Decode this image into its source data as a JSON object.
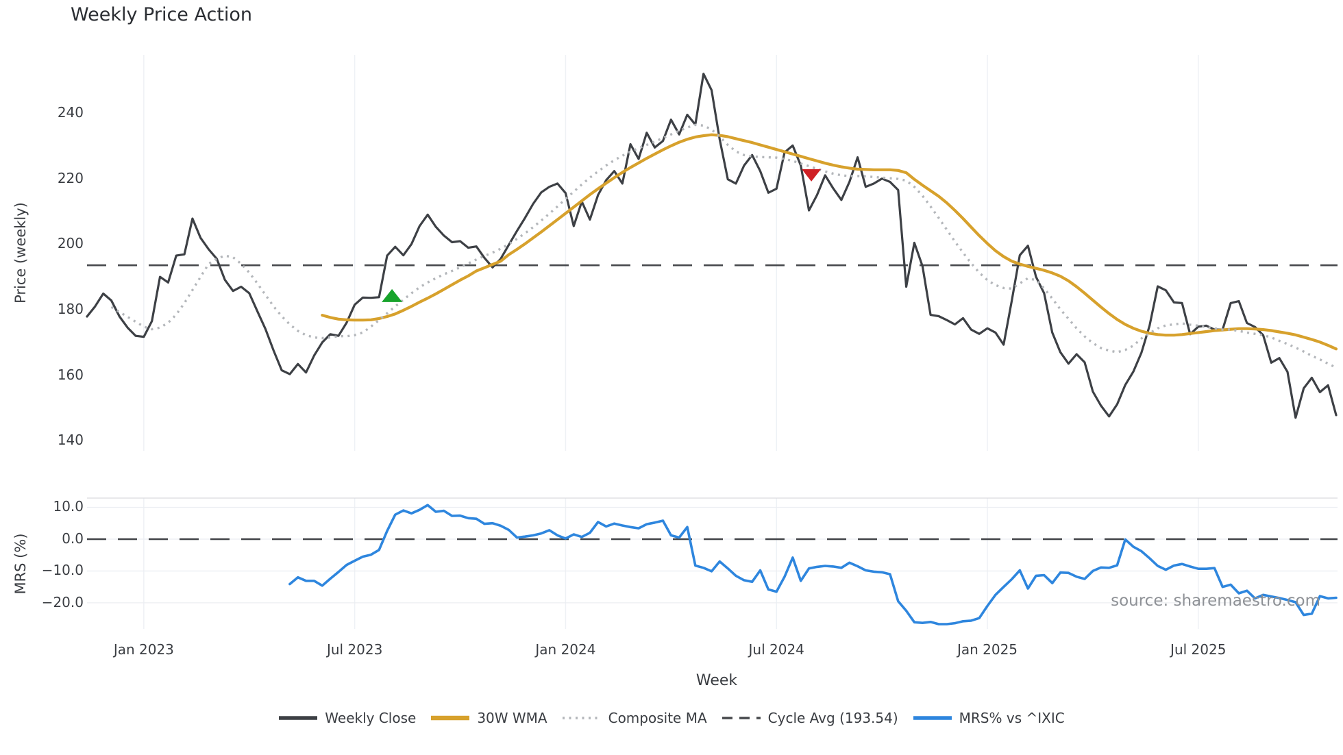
{
  "chart_data": {
    "type": "line",
    "title": "Weekly Price Action",
    "xlabel": "Week",
    "source_note": "source: sharemaestro.com",
    "colors": {
      "weekly_close": "#3d4045",
      "wma30": "#d7a12c",
      "composite": "#b4b7bb",
      "mrs": "#2e86de",
      "reference": "#46484c",
      "grid": "#eef1f5",
      "grid_h": "#eceef2",
      "spine": "#d9dbdf",
      "marker_buy": "#17a32b",
      "marker_sell": "#cf2025"
    },
    "panels": [
      {
        "id": "price",
        "ylabel": "Price (weekly)",
        "ylim": [
          136.9,
          257.8
        ],
        "yticks": [
          {
            "label": "240",
            "value": 240
          },
          {
            "label": "220",
            "value": 220
          },
          {
            "label": "200",
            "value": 200
          },
          {
            "label": "180",
            "value": 180
          },
          {
            "label": "160",
            "value": 160
          },
          {
            "label": "140",
            "value": 140
          }
        ],
        "h_grid": false
      },
      {
        "id": "mrs",
        "ylabel": "MRS (%)",
        "ylim": [
          -28.2,
          12.9
        ],
        "yticks": [
          {
            "label": "10.0",
            "value": 10
          },
          {
            "label": "0.0",
            "value": 0
          },
          {
            "label": "−10.0",
            "value": -10
          },
          {
            "label": "−20.0",
            "value": -20
          }
        ],
        "h_grid": true
      }
    ],
    "x_axis": {
      "weeks_total": 154,
      "ticks": [
        {
          "label": "Jan 2023",
          "week": 7
        },
        {
          "label": "Jul 2023",
          "week": 33
        },
        {
          "label": "Jan 2024",
          "week": 59
        },
        {
          "label": "Jul 2024",
          "week": 85
        },
        {
          "label": "Jan 2025",
          "week": 111
        },
        {
          "label": "Jul 2025",
          "week": 137
        }
      ]
    },
    "reference_lines": [
      {
        "name": "Cycle Avg (193.54)",
        "panel": "price",
        "value": 193.54,
        "style": "dashed"
      },
      {
        "name": "Zero",
        "panel": "mrs",
        "value": 0,
        "style": "dashed"
      }
    ],
    "markers": [
      {
        "shape": "triangle-up",
        "panel": "price",
        "week": 37.6,
        "price": 184.3,
        "color_key": "marker_buy",
        "w": 30,
        "h": 19
      },
      {
        "shape": "triangle-down",
        "panel": "price",
        "week": 89.3,
        "price": 221.0,
        "color_key": "marker_sell",
        "w": 28,
        "h": 18
      }
    ],
    "legend": {
      "position": "bottom-center",
      "entries": [
        {
          "label": "Weekly Close",
          "swatch": "solid-dark"
        },
        {
          "label": "30W WMA",
          "swatch": "solid-gold"
        },
        {
          "label": "Composite MA",
          "swatch": "dotted-gray"
        },
        {
          "label": "Cycle Avg (193.54)",
          "swatch": "dashed-dark"
        },
        {
          "label": "MRS% vs ^IXIC",
          "swatch": "solid-blue"
        }
      ]
    },
    "series": [
      {
        "name": "Weekly Close",
        "panel": "price",
        "color_key": "weekly_close",
        "style": "solid",
        "width": 3.2,
        "start_week": 0,
        "values": [
          177.9,
          181.0,
          184.9,
          182.8,
          177.9,
          174.5,
          172.0,
          171.7,
          176.5,
          190.0,
          188.3,
          196.5,
          196.9,
          207.8,
          201.9,
          198.4,
          195.5,
          189.1,
          185.7,
          187.0,
          185.0,
          179.5,
          174.1,
          167.5,
          161.5,
          160.3,
          163.4,
          160.8,
          166.0,
          170.0,
          172.5,
          172.0,
          176.0,
          181.5,
          183.7,
          183.6,
          183.8,
          196.5,
          199.2,
          196.6,
          200.0,
          205.5,
          209.0,
          205.3,
          202.6,
          200.6,
          200.9,
          198.9,
          199.3,
          195.8,
          192.9,
          195.5,
          199.8,
          204.0,
          208.0,
          212.3,
          215.8,
          217.5,
          218.5,
          215.6,
          205.5,
          213.0,
          207.5,
          215.0,
          219.5,
          222.3,
          218.5,
          230.5,
          226.0,
          234.0,
          229.5,
          231.5,
          238.0,
          233.5,
          239.5,
          236.5,
          252.0,
          247.0,
          232.0,
          219.8,
          218.5,
          224.0,
          227.2,
          222.3,
          215.7,
          216.9,
          228.0,
          230.1,
          224.0,
          210.3,
          215.0,
          221.0,
          217.0,
          213.5,
          219.0,
          226.5,
          217.5,
          218.5,
          220.0,
          219.0,
          216.5,
          187.0,
          200.4,
          193.3,
          178.4,
          178.0,
          176.8,
          175.5,
          177.4,
          173.9,
          172.6,
          174.3,
          173.0,
          169.3,
          182.6,
          196.6,
          199.5,
          190.0,
          185.0,
          173.0,
          167.0,
          163.5,
          166.4,
          163.9,
          155.0,
          150.7,
          147.4,
          151.1,
          157.0,
          161.1,
          166.9,
          175.1,
          187.1,
          185.9,
          182.2,
          182.0,
          172.5,
          174.8,
          175.1,
          173.9,
          173.9,
          182.0,
          182.6,
          175.9,
          174.7,
          172.2,
          163.8,
          165.2,
          161.0,
          147.0,
          156.0,
          159.2,
          154.8,
          156.9,
          147.8
        ]
      },
      {
        "name": "30W WMA",
        "panel": "price",
        "color_key": "wma30",
        "style": "solid",
        "width": 4.2,
        "start_week": 29,
        "values": [
          178.3,
          177.6,
          177.1,
          176.9,
          176.8,
          176.8,
          176.9,
          177.3,
          177.9,
          178.7,
          179.8,
          181.0,
          182.3,
          183.5,
          184.8,
          186.2,
          187.6,
          189.0,
          190.3,
          191.8,
          192.8,
          193.8,
          194.8,
          196.8,
          198.4,
          200.1,
          201.9,
          203.7,
          205.6,
          207.5,
          209.4,
          211.3,
          213.2,
          215.1,
          216.9,
          218.6,
          220.3,
          221.9,
          223.4,
          224.8,
          226.2,
          227.5,
          228.8,
          230.0,
          231.1,
          232.0,
          232.7,
          233.1,
          233.4,
          233.2,
          232.8,
          232.2,
          231.6,
          231.0,
          230.3,
          229.6,
          228.9,
          228.2,
          227.5,
          226.8,
          226.1,
          225.4,
          224.7,
          224.1,
          223.6,
          223.2,
          222.9,
          222.8,
          222.7,
          222.7,
          222.7,
          222.5,
          221.8,
          219.8,
          218.0,
          216.3,
          214.6,
          212.6,
          210.3,
          207.8,
          205.2,
          202.6,
          200.2,
          198.0,
          196.2,
          194.8,
          193.9,
          193.2,
          192.6,
          192.0,
          191.2,
          190.2,
          188.8,
          187.0,
          185.0,
          182.9,
          180.8,
          178.8,
          177.0,
          175.5,
          174.3,
          173.4,
          172.8,
          172.4,
          172.2,
          172.2,
          172.4,
          172.7,
          173.0,
          173.3,
          173.6,
          173.8,
          174.0,
          174.2,
          174.2,
          174.1,
          173.9,
          173.6,
          173.2,
          172.8,
          172.3,
          171.6,
          170.9,
          170.1,
          169.1,
          168.0
        ]
      },
      {
        "name": "Composite MA",
        "panel": "price",
        "color_key": "composite",
        "style": "dotted",
        "width": 3.4,
        "start_week": 3,
        "values": [
          180.8,
          179.3,
          177.8,
          176.3,
          174.8,
          174.0,
          174.5,
          176.0,
          178.5,
          182.0,
          186.0,
          190.0,
          194.0,
          195.5,
          196.5,
          196.0,
          194.0,
          191.3,
          188.0,
          184.5,
          181.0,
          178.0,
          175.5,
          173.5,
          172.2,
          171.5,
          171.3,
          171.5,
          171.9,
          171.9,
          172.2,
          173.0,
          174.8,
          176.8,
          178.9,
          181.0,
          183.0,
          185.0,
          186.8,
          188.3,
          189.6,
          190.8,
          191.8,
          192.9,
          194.1,
          195.3,
          196.4,
          197.4,
          198.6,
          200.0,
          201.6,
          203.3,
          205.2,
          207.2,
          209.3,
          211.5,
          213.8,
          216.0,
          218.2,
          220.3,
          222.2,
          224.0,
          225.6,
          227.0,
          228.2,
          229.3,
          230.3,
          231.3,
          232.4,
          233.5,
          234.6,
          235.6,
          236.4,
          236.2,
          235.0,
          232.8,
          230.3,
          228.3,
          227.2,
          226.8,
          226.6,
          226.5,
          226.4,
          226.0,
          225.4,
          224.6,
          223.8,
          223.0,
          222.2,
          221.5,
          221.0,
          220.8,
          220.8,
          220.7,
          220.5,
          220.3,
          220.1,
          219.9,
          219.4,
          217.5,
          214.8,
          211.5,
          208.0,
          204.4,
          200.8,
          197.4,
          194.2,
          191.3,
          189.0,
          187.5,
          186.6,
          186.4,
          188.0,
          189.6,
          189.0,
          186.5,
          183.4,
          180.1,
          177.2,
          174.3,
          171.8,
          169.8,
          168.3,
          167.5,
          167.0,
          167.7,
          169.0,
          171.2,
          172.8,
          174.3,
          175.2,
          175.5,
          175.8,
          175.4,
          175.1,
          174.7,
          174.3,
          173.9,
          173.9,
          173.5,
          173.0,
          172.6,
          172.2,
          171.5,
          170.5,
          169.5,
          168.4,
          167.2,
          165.9,
          164.8,
          163.5,
          162.3
        ]
      },
      {
        "name": "MRS% vs ^IXIC",
        "panel": "mrs",
        "color_key": "mrs",
        "style": "solid",
        "width": 3.6,
        "start_week": 25,
        "values": [
          -14.1,
          -12.0,
          -13.1,
          -13.1,
          -14.6,
          -12.4,
          -10.3,
          -8.1,
          -6.8,
          -5.5,
          -4.9,
          -3.4,
          2.6,
          7.7,
          9.0,
          8.1,
          9.2,
          10.7,
          8.6,
          8.9,
          7.3,
          7.4,
          6.6,
          6.4,
          4.8,
          5.0,
          4.2,
          2.9,
          0.5,
          0.8,
          1.2,
          1.8,
          2.8,
          1.2,
          0.2,
          1.5,
          0.7,
          2.0,
          5.4,
          4.0,
          4.9,
          4.3,
          3.8,
          3.4,
          4.7,
          5.2,
          5.8,
          1.2,
          0.5,
          3.8,
          -8.3,
          -9.0,
          -10.1,
          -7.0,
          -9.2,
          -11.5,
          -12.9,
          -13.4,
          -9.8,
          -15.8,
          -16.5,
          -11.8,
          -5.8,
          -13.1,
          -9.2,
          -8.7,
          -8.4,
          -8.6,
          -9.0,
          -7.4,
          -8.5,
          -9.8,
          -10.2,
          -10.4,
          -11.0,
          -19.5,
          -22.5,
          -26.1,
          -26.3,
          -26.0,
          -26.7,
          -26.7,
          -26.4,
          -25.8,
          -25.6,
          -24.8,
          -21.0,
          -17.5,
          -15.0,
          -12.6,
          -9.8,
          -15.5,
          -11.5,
          -11.3,
          -13.8,
          -10.5,
          -10.6,
          -11.8,
          -12.5,
          -10.0,
          -8.9,
          -9.0,
          -8.2,
          -0.1,
          -2.4,
          -3.8,
          -6.0,
          -8.4,
          -9.6,
          -8.3,
          -7.8,
          -8.6,
          -9.3,
          -9.3,
          -9.1,
          -15.0,
          -14.3,
          -17.0,
          -16.2,
          -18.6,
          -17.5,
          -18.0,
          -18.5,
          -19.1,
          -19.8,
          -23.8,
          -23.4,
          -17.9,
          -18.6,
          -18.4
        ]
      }
    ]
  }
}
